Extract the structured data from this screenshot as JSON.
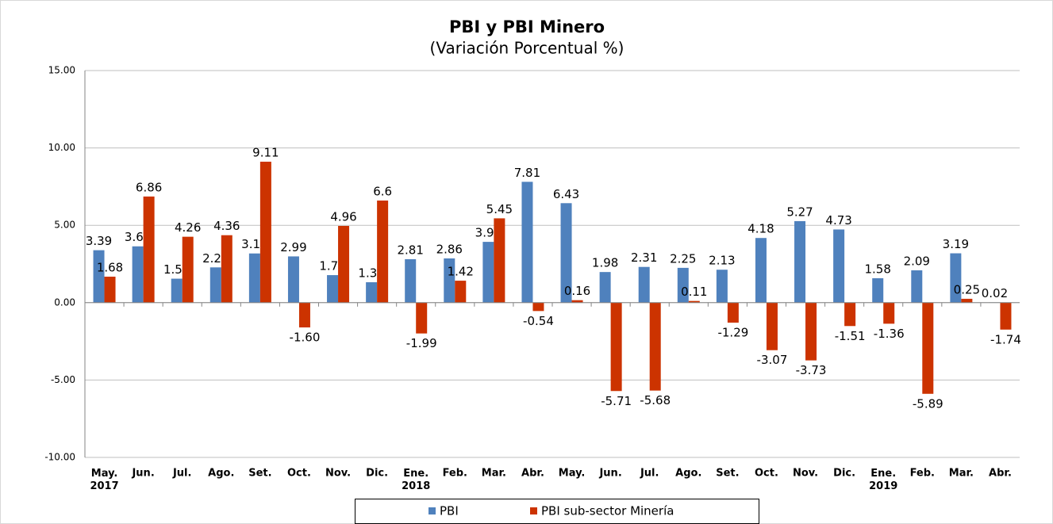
{
  "chart_data": {
    "type": "bar",
    "title": "PBI y PBI Minero",
    "subtitle": "(Variación Porcentual %)",
    "categories": [
      "May.\n2017",
      "Jun.",
      "Jul.",
      "Ago.",
      "Set.",
      "Oct.",
      "Nov.",
      "Dic.",
      "Ene.\n2018",
      "Feb.",
      "Mar.",
      "Abr.",
      "May.",
      "Jun.",
      "Jul.",
      "Ago.",
      "Set.",
      "Oct.",
      "Nov.",
      "Dic.",
      "Ene.\n2019",
      "Feb.",
      "Mar.",
      "Abr."
    ],
    "series": [
      {
        "name": "PBI",
        "color": "#4f81bd",
        "values": [
          3.39,
          3.64,
          1.55,
          2.28,
          3.18,
          2.99,
          1.78,
          1.32,
          2.81,
          2.86,
          3.93,
          7.81,
          6.43,
          1.98,
          2.31,
          2.25,
          2.13,
          4.18,
          5.27,
          4.73,
          1.58,
          2.09,
          3.19,
          0.02
        ],
        "value_labels": [
          "3.39",
          "3.64",
          "1.55",
          "2.28",
          "3.18",
          "2.99",
          "1.78",
          "1.32",
          "2.81",
          "2.86",
          "3.93",
          "7.81",
          "6.43",
          "1.98",
          "2.31",
          "2.25",
          "2.13",
          "4.18",
          "5.27",
          "4.73",
          "1.58",
          "2.09",
          "3.19",
          "0.02"
        ]
      },
      {
        "name": "PBI sub-sector Minería",
        "color": "#cc3300",
        "values": [
          1.68,
          6.86,
          4.26,
          4.36,
          9.11,
          -1.6,
          4.96,
          6.6,
          -1.99,
          1.42,
          5.45,
          -0.54,
          0.16,
          -5.71,
          -5.68,
          0.11,
          -1.29,
          -3.07,
          -3.73,
          -1.51,
          -1.36,
          -5.89,
          0.25,
          -1.74
        ],
        "value_labels": [
          "1.68",
          "6.86",
          "4.26",
          "4.36",
          "9.11",
          "-1.60",
          "4.96",
          "6.6",
          "-1.99",
          "1.42",
          "5.45",
          "-0.54",
          "0.16",
          "-5.71",
          "-5.68",
          "0.11",
          "-1.29",
          "-3.07",
          "-3.73",
          "-1.51",
          "-1.36",
          "-5.89",
          "0.25",
          "-1.74"
        ]
      }
    ],
    "ylim": [
      -10,
      15
    ],
    "yticks": [
      {
        "value": -10,
        "label": "-10.00"
      },
      {
        "value": -5,
        "label": "-5.00"
      },
      {
        "value": 0,
        "label": "0.00"
      },
      {
        "value": 5,
        "label": "5.00"
      },
      {
        "value": 10,
        "label": "10.00"
      },
      {
        "value": 15,
        "label": "15.00"
      }
    ],
    "grid": true,
    "legend": "bottom"
  }
}
